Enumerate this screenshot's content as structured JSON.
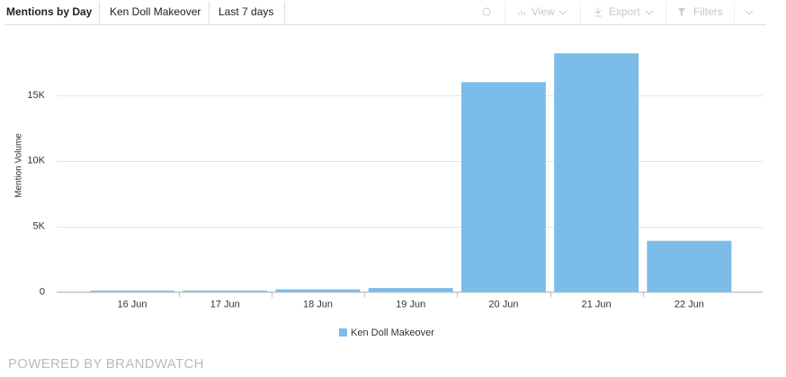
{
  "toolbar": {
    "title": "Mentions by Day",
    "topic": "Ken Doll Makeover",
    "range": "Last 7 days",
    "view": "View",
    "export": "Export",
    "filters": "Filters"
  },
  "chart_data": {
    "type": "bar",
    "y_label": "Mention Volume",
    "categories": [
      "16 Jun",
      "17 Jun",
      "18 Jun",
      "19 Jun",
      "20 Jun",
      "21 Jun",
      "22 Jun"
    ],
    "series": [
      {
        "name": "Ken Doll Makeover",
        "color": "#7bbde8",
        "values": [
          100,
          100,
          200,
          300,
          16000,
          18200,
          3900
        ]
      }
    ],
    "ylim": [
      0,
      20000
    ],
    "yticks": [
      0,
      {
        "value": 5000,
        "label": "5K"
      },
      {
        "value": 10000,
        "label": "10K"
      },
      {
        "value": 15000,
        "label": "15K"
      }
    ],
    "grid": true
  },
  "footer": "POWERED BY BRANDWATCH"
}
